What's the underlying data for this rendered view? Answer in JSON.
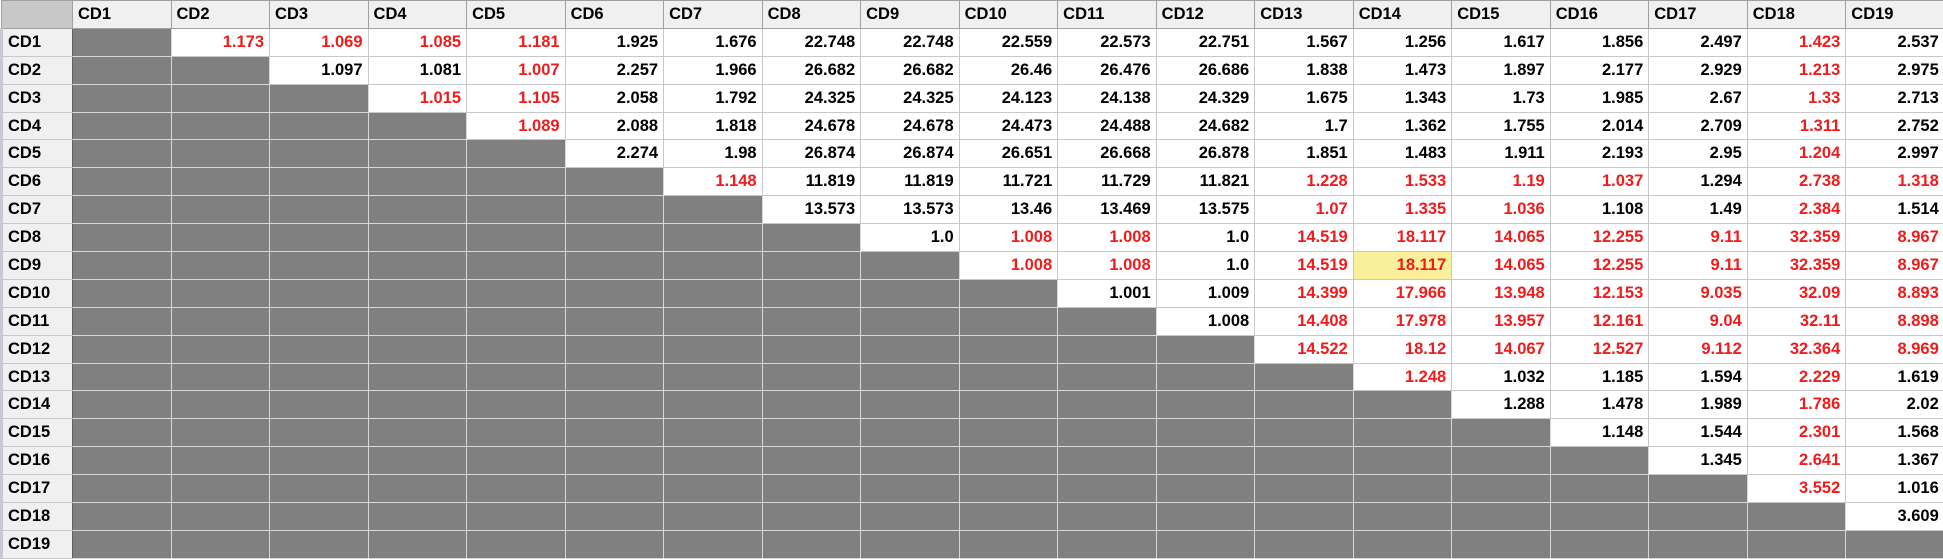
{
  "columns": [
    "CD1",
    "CD2",
    "CD3",
    "CD4",
    "CD5",
    "CD6",
    "CD7",
    "CD8",
    "CD9",
    "CD10",
    "CD11",
    "CD12",
    "CD13",
    "CD14",
    "CD15",
    "CD16",
    "CD17",
    "CD18",
    "CD19"
  ],
  "red_color": "#ee1c1c",
  "highlight_color": "#faf09c",
  "rows": [
    {
      "label": "CD1",
      "cells": [
        "1.173",
        "1.069",
        "1.085",
        "1.181",
        "1.925",
        "1.676",
        "22.748",
        "22.748",
        "22.559",
        "22.573",
        "22.751",
        "1.567",
        "1.256",
        "1.617",
        "1.856",
        "2.497",
        "1.423",
        "2.537"
      ],
      "red": [
        0,
        1,
        2,
        3,
        16
      ]
    },
    {
      "label": "CD2",
      "cells": [
        "1.097",
        "1.081",
        "1.007",
        "2.257",
        "1.966",
        "26.682",
        "26.682",
        "26.46",
        "26.476",
        "26.686",
        "1.838",
        "1.473",
        "1.897",
        "2.177",
        "2.929",
        "1.213",
        "2.975"
      ],
      "red": [
        2,
        15
      ]
    },
    {
      "label": "CD3",
      "cells": [
        "1.015",
        "1.105",
        "2.058",
        "1.792",
        "24.325",
        "24.325",
        "24.123",
        "24.138",
        "24.329",
        "1.675",
        "1.343",
        "1.73",
        "1.985",
        "2.67",
        "1.33",
        "2.713"
      ],
      "red": [
        0,
        1,
        14
      ]
    },
    {
      "label": "CD4",
      "cells": [
        "1.089",
        "2.088",
        "1.818",
        "24.678",
        "24.678",
        "24.473",
        "24.488",
        "24.682",
        "1.7",
        "1.362",
        "1.755",
        "2.014",
        "2.709",
        "1.311",
        "2.752"
      ],
      "red": [
        0,
        13
      ]
    },
    {
      "label": "CD5",
      "cells": [
        "2.274",
        "1.98",
        "26.874",
        "26.874",
        "26.651",
        "26.668",
        "26.878",
        "1.851",
        "1.483",
        "1.911",
        "2.193",
        "2.95",
        "1.204",
        "2.997"
      ],
      "red": [
        12
      ]
    },
    {
      "label": "CD6",
      "cells": [
        "1.148",
        "11.819",
        "11.819",
        "11.721",
        "11.729",
        "11.821",
        "1.228",
        "1.533",
        "1.19",
        "1.037",
        "1.294",
        "2.738",
        "1.318"
      ],
      "red": [
        0,
        6,
        7,
        8,
        9,
        11,
        12
      ]
    },
    {
      "label": "CD7",
      "cells": [
        "13.573",
        "13.573",
        "13.46",
        "13.469",
        "13.575",
        "1.07",
        "1.335",
        "1.036",
        "1.108",
        "1.49",
        "2.384",
        "1.514"
      ],
      "red": [
        5,
        6,
        7,
        10
      ]
    },
    {
      "label": "CD8",
      "cells": [
        "1.0",
        "1.008",
        "1.008",
        "1.0",
        "14.519",
        "18.117",
        "14.065",
        "12.255",
        "9.11",
        "32.359",
        "8.967"
      ],
      "red": [
        1,
        2,
        4,
        5,
        6,
        7,
        8,
        9,
        10
      ]
    },
    {
      "label": "CD9",
      "cells": [
        "1.008",
        "1.008",
        "1.0",
        "14.519",
        "18.117",
        "14.065",
        "12.255",
        "9.11",
        "32.359",
        "8.967"
      ],
      "red": [
        0,
        1,
        3,
        4,
        5,
        6,
        7,
        8,
        9
      ],
      "highlight": 4
    },
    {
      "label": "CD10",
      "cells": [
        "1.001",
        "1.009",
        "14.399",
        "17.966",
        "13.948",
        "12.153",
        "9.035",
        "32.09",
        "8.893"
      ],
      "red": [
        2,
        3,
        4,
        5,
        6,
        7,
        8
      ]
    },
    {
      "label": "CD11",
      "cells": [
        "1.008",
        "14.408",
        "17.978",
        "13.957",
        "12.161",
        "9.04",
        "32.11",
        "8.898"
      ],
      "red": [
        1,
        2,
        3,
        4,
        5,
        6,
        7
      ]
    },
    {
      "label": "CD12",
      "cells": [
        "14.522",
        "18.12",
        "14.067",
        "12.527",
        "9.112",
        "32.364",
        "8.969"
      ],
      "red": [
        0,
        1,
        2,
        3,
        4,
        5,
        6
      ]
    },
    {
      "label": "CD13",
      "cells": [
        "1.248",
        "1.032",
        "1.185",
        "1.594",
        "2.229",
        "1.619"
      ],
      "red": [
        0,
        4
      ]
    },
    {
      "label": "CD14",
      "cells": [
        "1.288",
        "1.478",
        "1.989",
        "1.786",
        "2.02"
      ],
      "red": [
        3
      ]
    },
    {
      "label": "CD15",
      "cells": [
        "1.148",
        "1.544",
        "2.301",
        "1.568"
      ],
      "red": [
        2
      ]
    },
    {
      "label": "CD16",
      "cells": [
        "1.345",
        "2.641",
        "1.367"
      ],
      "red": [
        1
      ]
    },
    {
      "label": "CD17",
      "cells": [
        "3.552",
        "1.016"
      ],
      "red": [
        0
      ]
    },
    {
      "label": "CD18",
      "cells": [
        "3.609"
      ],
      "red": []
    },
    {
      "label": "CD19",
      "cells": [],
      "red": []
    }
  ]
}
